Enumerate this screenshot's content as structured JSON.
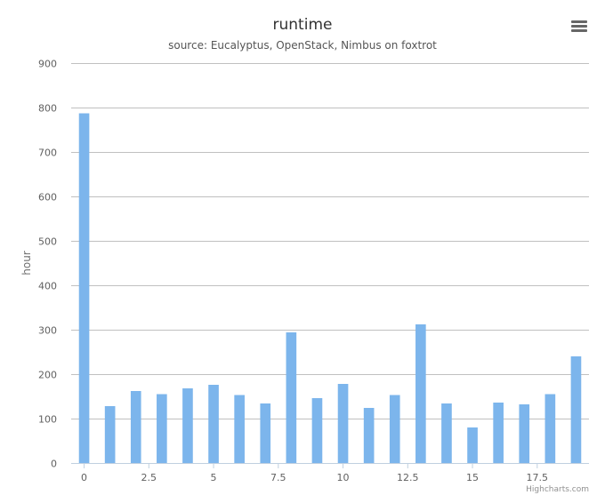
{
  "chart_data": {
    "type": "bar",
    "title": "runtime",
    "subtitle": "source: Eucalyptus, OpenStack, Nimbus on foxtrot",
    "xlabel": "",
    "ylabel": "hour",
    "x": [
      0,
      1,
      2,
      3,
      4,
      5,
      6,
      7,
      8,
      9,
      10,
      11,
      12,
      13,
      14,
      15,
      16,
      17,
      18,
      19
    ],
    "values": [
      787,
      128,
      162,
      155,
      168,
      176,
      153,
      134,
      294,
      146,
      178,
      124,
      153,
      312,
      134,
      80,
      136,
      132,
      155,
      240
    ],
    "xlim": [
      -0.5,
      19.5
    ],
    "ylim": [
      0,
      900
    ],
    "xticks": [
      {
        "value": 0,
        "label": "0"
      },
      {
        "value": 2.5,
        "label": "2.5"
      },
      {
        "value": 5,
        "label": "5"
      },
      {
        "value": 7.5,
        "label": "7.5"
      },
      {
        "value": 10,
        "label": "10"
      },
      {
        "value": 12.5,
        "label": "12.5"
      },
      {
        "value": 15,
        "label": "15"
      },
      {
        "value": 17.5,
        "label": "17.5"
      }
    ],
    "yticks": [
      {
        "value": 0,
        "label": "0"
      },
      {
        "value": 100,
        "label": "100"
      },
      {
        "value": 200,
        "label": "200"
      },
      {
        "value": 300,
        "label": "300"
      },
      {
        "value": 400,
        "label": "400"
      },
      {
        "value": 500,
        "label": "500"
      },
      {
        "value": 600,
        "label": "600"
      },
      {
        "value": 700,
        "label": "700"
      },
      {
        "value": 800,
        "label": "800"
      },
      {
        "value": 900,
        "label": "900"
      }
    ],
    "grid": true,
    "legend": "none",
    "bar_color": "#7cb5ec",
    "grid_color": "#c0c0c0"
  },
  "credits": "Highcharts.com",
  "menu_icon": "hamburger-menu-icon"
}
